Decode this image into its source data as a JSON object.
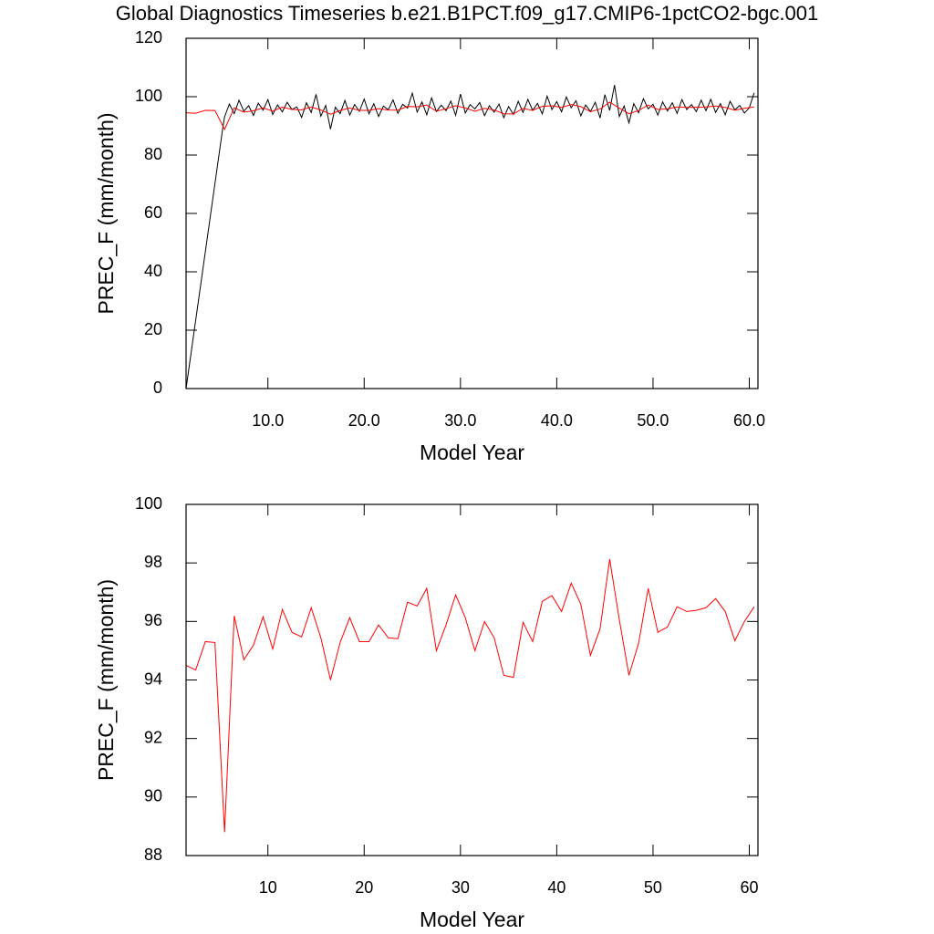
{
  "chart_data": [
    {
      "type": "line",
      "title": "Global Diagnostics Timeseries b.e21.B1PCT.f09_g17.CMIP6-1pctCO2-bgc.001",
      "x_label": "Model Year",
      "y_label": "PREC_F (mm/month)",
      "xlim": [
        1.5,
        60.9
      ],
      "ylim": [
        0,
        120
      ],
      "xticks": [
        {
          "value": 10,
          "label": "10.0"
        },
        {
          "value": 20,
          "label": "20.0"
        },
        {
          "value": 30,
          "label": "30.0"
        },
        {
          "value": 40,
          "label": "40.0"
        },
        {
          "value": 50,
          "label": "50.0"
        },
        {
          "value": 60,
          "label": "60.0"
        }
      ],
      "yticks": [
        0,
        20,
        40,
        60,
        80,
        100,
        120
      ],
      "series": [
        {
          "color": "#000000",
          "x": [
            1.5,
            5.3,
            5.5,
            6,
            6.5,
            7,
            7.5,
            8,
            8.5,
            9,
            9.5,
            10,
            10.5,
            11,
            11.5,
            12,
            12.5,
            13,
            13.5,
            14,
            14.5,
            15,
            15.5,
            16,
            16.5,
            17,
            17.5,
            18,
            18.5,
            19,
            19.5,
            20,
            20.5,
            21,
            21.5,
            22,
            22.5,
            23,
            23.5,
            24,
            24.5,
            25,
            25.5,
            26,
            26.5,
            27,
            27.5,
            28,
            28.5,
            29,
            29.5,
            30,
            30.5,
            31,
            31.5,
            32,
            32.5,
            33,
            33.5,
            34,
            34.5,
            35,
            35.5,
            36,
            36.5,
            37,
            37.5,
            38,
            38.5,
            39,
            39.5,
            40,
            40.5,
            41,
            41.5,
            42,
            42.5,
            43,
            43.5,
            44,
            44.5,
            45,
            45.5,
            46,
            46.5,
            47,
            47.5,
            48,
            48.5,
            49,
            49.5,
            50,
            50.5,
            51,
            51.5,
            52,
            52.5,
            53,
            53.5,
            54,
            54.5,
            55,
            55.5,
            56,
            56.5,
            57,
            57.5,
            58,
            58.5,
            59,
            59.5,
            60,
            60.5
          ],
          "values": [
            0,
            89,
            93.1,
            97.5,
            94.2,
            98.8,
            95.0,
            96.9,
            93.6,
            97.8,
            95.4,
            99.0,
            93.9,
            97.2,
            94.8,
            98.1,
            95.6,
            96.5,
            92.9,
            97.9,
            94.6,
            100.8,
            93.3,
            97.0,
            88.9,
            96.4,
            94.2,
            98.7,
            93.7,
            97.3,
            95.0,
            99.2,
            94.1,
            97.6,
            93.2,
            96.8,
            95.5,
            98.9,
            94.3,
            97.4,
            96.1,
            101.2,
            94.7,
            98.2,
            93.8,
            99.6,
            94.9,
            97.1,
            95.2,
            98.5,
            93.6,
            100.9,
            94.4,
            97.3,
            95.8,
            98.0,
            93.5,
            96.9,
            94.7,
            97.5,
            92.8,
            96.6,
            93.9,
            98.4,
            94.6,
            99.1,
            95.3,
            97.7,
            94.1,
            100.2,
            95.6,
            98.3,
            94.8,
            99.9,
            96.2,
            98.6,
            93.4,
            97.2,
            94.9,
            98.1,
            92.7,
            100.7,
            95.3,
            104.0,
            93.2,
            96.8,
            91.0,
            97.6,
            94.5,
            99.3,
            95.8,
            97.4,
            93.7,
            98.2,
            95.1,
            97.9,
            94.3,
            99.0,
            95.6,
            97.3,
            94.9,
            98.8,
            95.2,
            99.1,
            94.6,
            97.6,
            93.8,
            98.4,
            95.5,
            97.0,
            94.4,
            96.2,
            101.3
          ]
        },
        {
          "color": "#ff0000",
          "x": [
            1.5,
            2.5,
            3.5,
            4.5,
            5.5,
            6.5,
            7.5,
            8.5,
            9.5,
            10.5,
            11.5,
            12.5,
            13.5,
            14.5,
            15.5,
            16.5,
            17.5,
            18.5,
            19.5,
            20.5,
            21.5,
            22.5,
            23.5,
            24.5,
            25.5,
            26.5,
            27.5,
            28.5,
            29.5,
            30.5,
            31.5,
            32.5,
            33.5,
            34.5,
            35.5,
            36.5,
            37.5,
            38.5,
            39.5,
            40.5,
            41.5,
            42.5,
            43.5,
            44.5,
            45.5,
            46.5,
            47.5,
            48.5,
            49.5,
            50.5,
            51.5,
            52.5,
            53.5,
            54.5,
            55.5,
            56.5,
            57.5,
            58.5,
            59.5,
            60.5
          ],
          "values": [
            94.5,
            94.34,
            95.31,
            95.28,
            88.8,
            96.19,
            94.69,
            95.19,
            96.16,
            95.06,
            96.41,
            95.63,
            95.47,
            96.47,
            95.44,
            94.0,
            95.28,
            96.13,
            95.31,
            95.31,
            95.88,
            95.44,
            95.41,
            96.66,
            96.53,
            97.13,
            95.0,
            95.88,
            96.91,
            96.13,
            95.0,
            96.0,
            95.44,
            94.16,
            94.09,
            95.97,
            95.31,
            96.69,
            96.88,
            96.34,
            97.31,
            96.59,
            94.84,
            95.75,
            98.13,
            96.06,
            94.16,
            95.25,
            97.13,
            95.63,
            95.81,
            96.5,
            96.34,
            96.38,
            96.47,
            96.78,
            96.34,
            95.34,
            96.0,
            96.5
          ]
        }
      ]
    },
    {
      "type": "line",
      "x_label": "Model Year",
      "y_label": "PREC_F (mm/month)",
      "xlim": [
        1.5,
        60.9
      ],
      "ylim": [
        88,
        100
      ],
      "xticks": [
        10,
        20,
        30,
        40,
        50,
        60
      ],
      "yticks": [
        88,
        90,
        92,
        94,
        96,
        98,
        100
      ],
      "series": [
        {
          "color": "#ff0000",
          "x": [
            1.5,
            2.5,
            3.5,
            4.5,
            5.5,
            6.5,
            7.5,
            8.5,
            9.5,
            10.5,
            11.5,
            12.5,
            13.5,
            14.5,
            15.5,
            16.5,
            17.5,
            18.5,
            19.5,
            20.5,
            21.5,
            22.5,
            23.5,
            24.5,
            25.5,
            26.5,
            27.5,
            28.5,
            29.5,
            30.5,
            31.5,
            32.5,
            33.5,
            34.5,
            35.5,
            36.5,
            37.5,
            38.5,
            39.5,
            40.5,
            41.5,
            42.5,
            43.5,
            44.5,
            45.5,
            46.5,
            47.5,
            48.5,
            49.5,
            50.5,
            51.5,
            52.5,
            53.5,
            54.5,
            55.5,
            56.5,
            57.5,
            58.5,
            59.5,
            60.5
          ],
          "values": [
            94.5,
            94.34,
            95.31,
            95.28,
            88.8,
            96.19,
            94.69,
            95.19,
            96.16,
            95.06,
            96.41,
            95.63,
            95.47,
            96.47,
            95.44,
            94.0,
            95.28,
            96.13,
            95.31,
            95.31,
            95.88,
            95.44,
            95.41,
            96.66,
            96.53,
            97.13,
            95.0,
            95.88,
            96.91,
            96.13,
            95.0,
            96.0,
            95.44,
            94.16,
            94.09,
            95.97,
            95.31,
            96.69,
            96.88,
            96.34,
            97.31,
            96.59,
            94.84,
            95.75,
            98.13,
            96.06,
            94.16,
            95.25,
            97.13,
            95.63,
            95.81,
            96.5,
            96.34,
            96.38,
            96.47,
            96.78,
            96.34,
            95.34,
            96.0,
            96.5
          ]
        }
      ]
    }
  ]
}
